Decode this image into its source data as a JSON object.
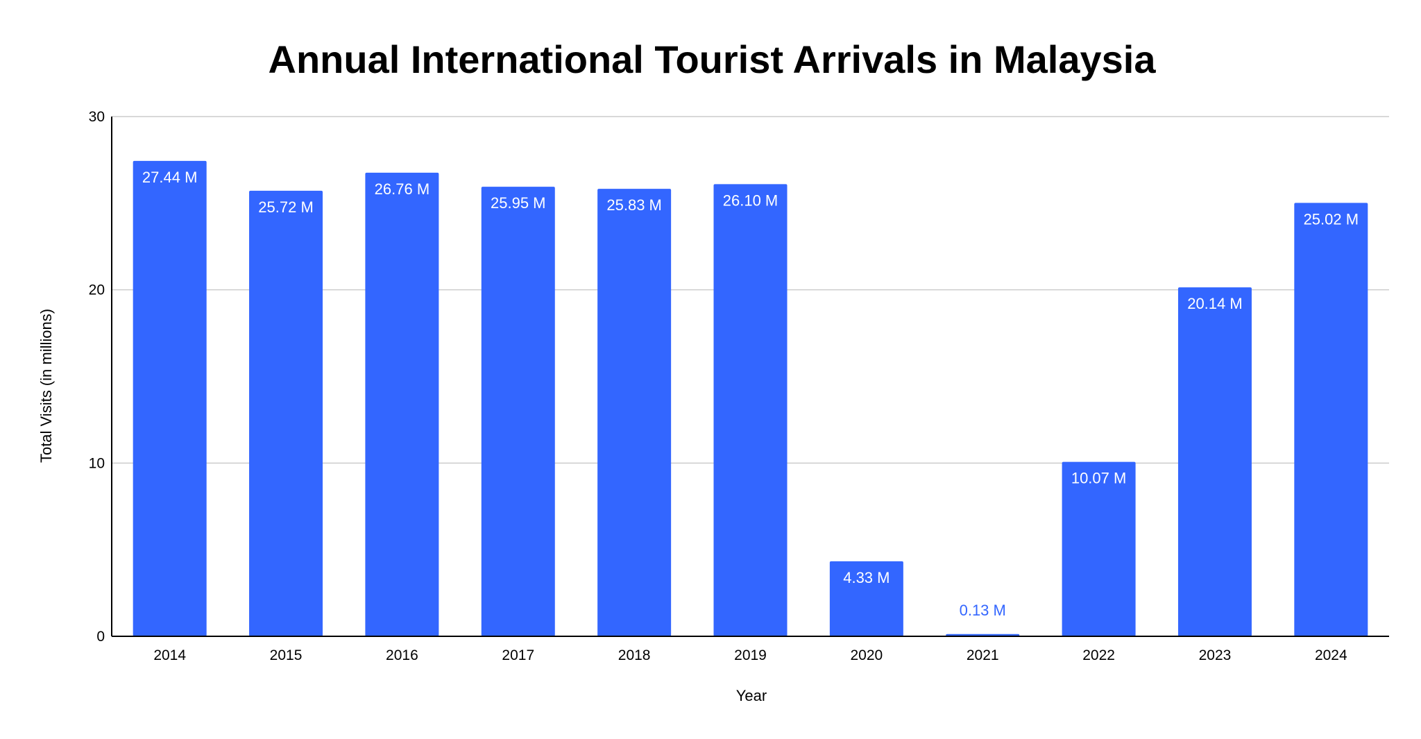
{
  "chart_data": {
    "type": "bar",
    "title": "Annual International Tourist Arrivals in Malaysia",
    "xlabel": "Year",
    "ylabel": "Total Visits (in millions)",
    "categories": [
      "2014",
      "2015",
      "2016",
      "2017",
      "2018",
      "2019",
      "2020",
      "2021",
      "2022",
      "2023",
      "2024"
    ],
    "values": [
      27.44,
      25.72,
      26.76,
      25.95,
      25.83,
      26.1,
      4.33,
      0.13,
      10.07,
      20.14,
      25.02
    ],
    "data_labels": [
      "27.44 M",
      "25.72 M",
      "26.76 M",
      "25.95 M",
      "25.83 M",
      "26.10 M",
      "4.33 M",
      "0.13 M",
      "10.07 M",
      "20.14 M",
      "25.02 M"
    ],
    "ylim": [
      0,
      30
    ],
    "yticks": [
      0,
      10,
      20,
      30
    ],
    "grid": true,
    "legend": "none",
    "colors": {
      "bar": "#3366ff",
      "label_inside": "#ffffff",
      "label_outside": "#3366ff",
      "grid": "#cccccc",
      "axis": "#000000"
    }
  }
}
